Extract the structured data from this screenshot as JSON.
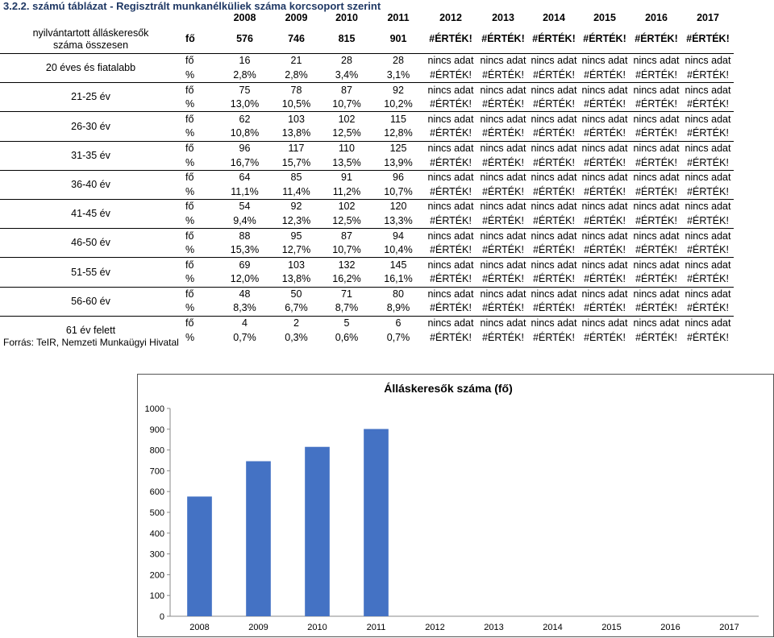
{
  "page": {
    "title": "3.2.2. számú táblázat - Regisztrált munkanélküliek száma korcsoport szerint",
    "source": "Forrás: TeIR, Nemzeti Munkaügyi Hivatal"
  },
  "table": {
    "years": [
      "2008",
      "2009",
      "2010",
      "2011",
      "2012",
      "2013",
      "2014",
      "2015",
      "2016",
      "2017"
    ],
    "total": {
      "label": "nyilvántartott álláskeresők száma összesen",
      "unit": "fő",
      "values": [
        "576",
        "746",
        "815",
        "901",
        "#ÉRTÉK!",
        "#ÉRTÉK!",
        "#ÉRTÉK!",
        "#ÉRTÉK!",
        "#ÉRTÉK!",
        "#ÉRTÉK!"
      ]
    },
    "groups": [
      {
        "label": "20 éves és fiatalabb",
        "fo": [
          "16",
          "21",
          "28",
          "28",
          "nincs adat",
          "nincs adat",
          "nincs adat",
          "nincs adat",
          "nincs adat",
          "nincs adat"
        ],
        "pct": [
          "2,8%",
          "2,8%",
          "3,4%",
          "3,1%",
          "#ÉRTÉK!",
          "#ÉRTÉK!",
          "#ÉRTÉK!",
          "#ÉRTÉK!",
          "#ÉRTÉK!",
          "#ÉRTÉK!"
        ]
      },
      {
        "label": "21-25 év",
        "fo": [
          "75",
          "78",
          "87",
          "92",
          "nincs adat",
          "nincs adat",
          "nincs adat",
          "nincs adat",
          "nincs adat",
          "nincs adat"
        ],
        "pct": [
          "13,0%",
          "10,5%",
          "10,7%",
          "10,2%",
          "#ÉRTÉK!",
          "#ÉRTÉK!",
          "#ÉRTÉK!",
          "#ÉRTÉK!",
          "#ÉRTÉK!",
          "#ÉRTÉK!"
        ]
      },
      {
        "label": "26-30 év",
        "fo": [
          "62",
          "103",
          "102",
          "115",
          "nincs adat",
          "nincs adat",
          "nincs adat",
          "nincs adat",
          "nincs adat",
          "nincs adat"
        ],
        "pct": [
          "10,8%",
          "13,8%",
          "12,5%",
          "12,8%",
          "#ÉRTÉK!",
          "#ÉRTÉK!",
          "#ÉRTÉK!",
          "#ÉRTÉK!",
          "#ÉRTÉK!",
          "#ÉRTÉK!"
        ]
      },
      {
        "label": "31-35 év",
        "fo": [
          "96",
          "117",
          "110",
          "125",
          "nincs adat",
          "nincs adat",
          "nincs adat",
          "nincs adat",
          "nincs adat",
          "nincs adat"
        ],
        "pct": [
          "16,7%",
          "15,7%",
          "13,5%",
          "13,9%",
          "#ÉRTÉK!",
          "#ÉRTÉK!",
          "#ÉRTÉK!",
          "#ÉRTÉK!",
          "#ÉRTÉK!",
          "#ÉRTÉK!"
        ]
      },
      {
        "label": "36-40 év",
        "fo": [
          "64",
          "85",
          "91",
          "96",
          "nincs adat",
          "nincs adat",
          "nincs adat",
          "nincs adat",
          "nincs adat",
          "nincs adat"
        ],
        "pct": [
          "11,1%",
          "11,4%",
          "11,2%",
          "10,7%",
          "#ÉRTÉK!",
          "#ÉRTÉK!",
          "#ÉRTÉK!",
          "#ÉRTÉK!",
          "#ÉRTÉK!",
          "#ÉRTÉK!"
        ]
      },
      {
        "label": "41-45 év",
        "fo": [
          "54",
          "92",
          "102",
          "120",
          "nincs adat",
          "nincs adat",
          "nincs adat",
          "nincs adat",
          "nincs adat",
          "nincs adat"
        ],
        "pct": [
          "9,4%",
          "12,3%",
          "12,5%",
          "13,3%",
          "#ÉRTÉK!",
          "#ÉRTÉK!",
          "#ÉRTÉK!",
          "#ÉRTÉK!",
          "#ÉRTÉK!",
          "#ÉRTÉK!"
        ]
      },
      {
        "label": "46-50 év",
        "fo": [
          "88",
          "95",
          "87",
          "94",
          "nincs adat",
          "nincs adat",
          "nincs adat",
          "nincs adat",
          "nincs adat",
          "nincs adat"
        ],
        "pct": [
          "15,3%",
          "12,7%",
          "10,7%",
          "10,4%",
          "#ÉRTÉK!",
          "#ÉRTÉK!",
          "#ÉRTÉK!",
          "#ÉRTÉK!",
          "#ÉRTÉK!",
          "#ÉRTÉK!"
        ]
      },
      {
        "label": "51-55 év",
        "fo": [
          "69",
          "103",
          "132",
          "145",
          "nincs adat",
          "nincs adat",
          "nincs adat",
          "nincs adat",
          "nincs adat",
          "nincs adat"
        ],
        "pct": [
          "12,0%",
          "13,8%",
          "16,2%",
          "16,1%",
          "#ÉRTÉK!",
          "#ÉRTÉK!",
          "#ÉRTÉK!",
          "#ÉRTÉK!",
          "#ÉRTÉK!",
          "#ÉRTÉK!"
        ]
      },
      {
        "label": "56-60 év",
        "fo": [
          "48",
          "50",
          "71",
          "80",
          "nincs adat",
          "nincs adat",
          "nincs adat",
          "nincs adat",
          "nincs adat",
          "nincs adat"
        ],
        "pct": [
          "8,3%",
          "6,7%",
          "8,7%",
          "8,9%",
          "#ÉRTÉK!",
          "#ÉRTÉK!",
          "#ÉRTÉK!",
          "#ÉRTÉK!",
          "#ÉRTÉK!",
          "#ÉRTÉK!"
        ]
      },
      {
        "label": "61 év felett",
        "fo": [
          "4",
          "2",
          "5",
          "6",
          "nincs adat",
          "nincs adat",
          "nincs adat",
          "nincs adat",
          "nincs adat",
          "nincs adat"
        ],
        "pct": [
          "0,7%",
          "0,3%",
          "0,6%",
          "0,7%",
          "#ÉRTÉK!",
          "#ÉRTÉK!",
          "#ÉRTÉK!",
          "#ÉRTÉK!",
          "#ÉRTÉK!",
          "#ÉRTÉK!"
        ]
      }
    ],
    "unit_fo": "fő",
    "unit_pct": "%"
  },
  "chart_data": {
    "type": "bar",
    "title": "Álláskeresők száma (fő)",
    "categories": [
      "2008",
      "2009",
      "2010",
      "2011",
      "2012",
      "2013",
      "2014",
      "2015",
      "2016",
      "2017"
    ],
    "values": [
      576,
      746,
      815,
      901,
      null,
      null,
      null,
      null,
      null,
      null
    ],
    "ylim": [
      0,
      1000
    ],
    "yticks": [
      0,
      100,
      200,
      300,
      400,
      500,
      600,
      700,
      800,
      900,
      1000
    ],
    "grid": false,
    "legend": "none",
    "bar_color": "#4472c4",
    "xlabel": "",
    "ylabel": ""
  }
}
